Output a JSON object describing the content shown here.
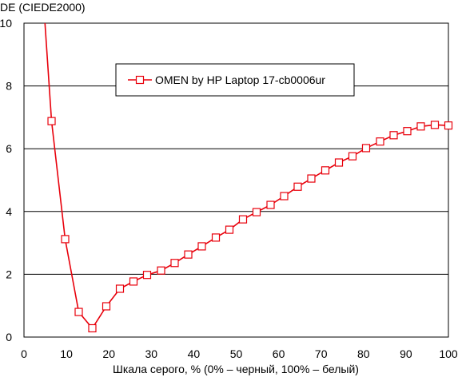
{
  "chart_data": {
    "type": "line",
    "title": "",
    "ylabel": "DE (CIEDE2000)",
    "xlabel": "Шкала серого, % (0% – черный, 100% – белый)",
    "xlim": [
      0,
      100
    ],
    "ylim": [
      0,
      10
    ],
    "x_ticks": [
      0,
      10,
      20,
      30,
      40,
      50,
      60,
      70,
      80,
      90,
      100
    ],
    "y_ticks": [
      0,
      2,
      4,
      6,
      8,
      10
    ],
    "grid": "horizontal",
    "legend_position": "top-center",
    "series": [
      {
        "name": "OMEN by HP Laptop 17-cb0006ur",
        "color": "#e8000b",
        "marker": "open-square",
        "x": [
          3.2,
          6.5,
          9.7,
          12.9,
          16.1,
          19.4,
          22.6,
          25.8,
          29.0,
          32.3,
          35.5,
          38.7,
          41.9,
          45.2,
          48.4,
          51.6,
          54.8,
          58.1,
          61.3,
          64.5,
          67.7,
          71.0,
          74.2,
          77.4,
          80.6,
          83.9,
          87.1,
          90.3,
          93.5,
          96.8,
          100.0
        ],
        "y": [
          13.5,
          6.88,
          3.12,
          0.8,
          0.28,
          0.98,
          1.54,
          1.77,
          1.98,
          2.12,
          2.36,
          2.63,
          2.89,
          3.17,
          3.42,
          3.75,
          3.98,
          4.21,
          4.49,
          4.79,
          5.05,
          5.31,
          5.56,
          5.76,
          6.02,
          6.23,
          6.43,
          6.56,
          6.71,
          6.76,
          6.74
        ]
      }
    ]
  }
}
